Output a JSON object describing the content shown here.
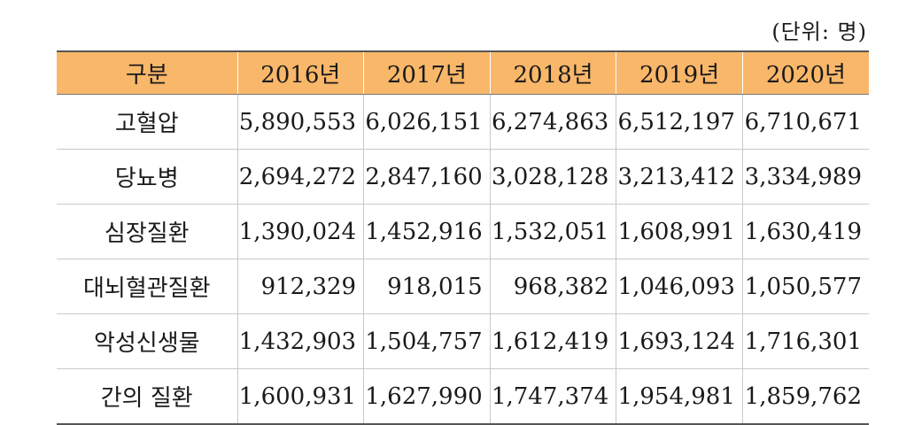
{
  "unit_note": "(단위: 명)",
  "table": {
    "header": [
      "구분",
      "2016년",
      "2017년",
      "2018년",
      "2019년",
      "2020년"
    ],
    "rows": [
      {
        "label": "고혈압",
        "values": [
          "5,890,553",
          "6,026,151",
          "6,274,863",
          "6,512,197",
          "6,710,671"
        ]
      },
      {
        "label": "당뇨병",
        "values": [
          "2,694,272",
          "2,847,160",
          "3,028,128",
          "3,213,412",
          "3,334,989"
        ]
      },
      {
        "label": "심장질환",
        "values": [
          "1,390,024",
          "1,452,916",
          "1,532,051",
          "1,608,991",
          "1,630,419"
        ]
      },
      {
        "label": "대뇌혈관질환",
        "values": [
          "912,329",
          "918,015",
          "968,382",
          "1,046,093",
          "1,050,577"
        ]
      },
      {
        "label": "악성신생물",
        "values": [
          "1,432,903",
          "1,504,757",
          "1,612,419",
          "1,693,124",
          "1,716,301"
        ]
      },
      {
        "label": "간의 질환",
        "values": [
          "1,600,931",
          "1,627,990",
          "1,747,374",
          "1,954,981",
          "1,859,762"
        ]
      }
    ]
  }
}
